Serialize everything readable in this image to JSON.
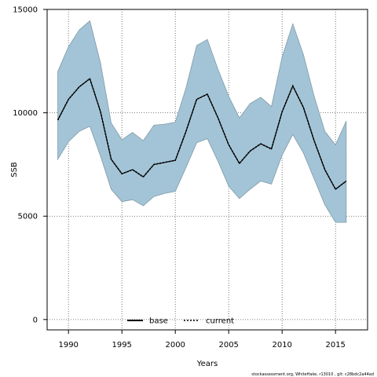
{
  "chart_data": {
    "type": "area",
    "xlabel": "Years",
    "ylabel": "SSB",
    "xlim": [
      1988,
      2018
    ],
    "ylim": [
      -500,
      15000
    ],
    "x_ticks": [
      1990,
      1995,
      2000,
      2005,
      2010,
      2015
    ],
    "y_ticks": [
      0,
      5000,
      10000,
      15000
    ],
    "grid": true,
    "legend_position": "bottom-center",
    "colors": {
      "band_fill": "#a3c4d6",
      "band_edge": "#7f9aa8",
      "line": "#000000",
      "grid": "#555555"
    },
    "x": [
      1989,
      1990,
      1991,
      1992,
      1993,
      1994,
      1995,
      1996,
      1997,
      1998,
      1999,
      2000,
      2001,
      2002,
      2003,
      2004,
      2005,
      2006,
      2007,
      2008,
      2009,
      2010,
      2011,
      2012,
      2013,
      2014,
      2015,
      2016
    ],
    "band": {
      "upper": [
        12000,
        13200,
        14000,
        14450,
        12400,
        9500,
        8700,
        9050,
        8650,
        9400,
        9450,
        9550,
        11200,
        13250,
        13550,
        12100,
        10800,
        9750,
        10450,
        10750,
        10300,
        12700,
        14300,
        12800,
        10800,
        9100,
        8450,
        9600
      ],
      "lower": [
        7750,
        8600,
        9100,
        9350,
        7900,
        6300,
        5700,
        5800,
        5500,
        5950,
        6100,
        6200,
        7350,
        8550,
        8750,
        7650,
        6450,
        5850,
        6300,
        6700,
        6550,
        7950,
        8950,
        8050,
        6800,
        5550,
        4700,
        4700
      ]
    },
    "series": [
      {
        "name": "base",
        "style": "solid",
        "values": [
          9650,
          10650,
          11250,
          11650,
          10050,
          7750,
          7050,
          7250,
          6900,
          7500,
          7600,
          7700,
          9100,
          10650,
          10900,
          9750,
          8450,
          7550,
          8150,
          8500,
          8250,
          10050,
          11300,
          10250,
          8650,
          7250,
          6300,
          6700
        ]
      },
      {
        "name": "current",
        "style": "dotted",
        "values": [
          9650,
          10650,
          11250,
          11650,
          10050,
          7750,
          7050,
          7250,
          6900,
          7500,
          7600,
          7700,
          9100,
          10650,
          10900,
          9750,
          8450,
          7550,
          8150,
          8500,
          8250,
          10050,
          11300,
          10250,
          8650,
          7250,
          6300,
          6700
        ]
      }
    ],
    "footer": "stockassessment.org,  WhiteHake,  r13010 ,  git:  c28bdc2a44ad"
  }
}
